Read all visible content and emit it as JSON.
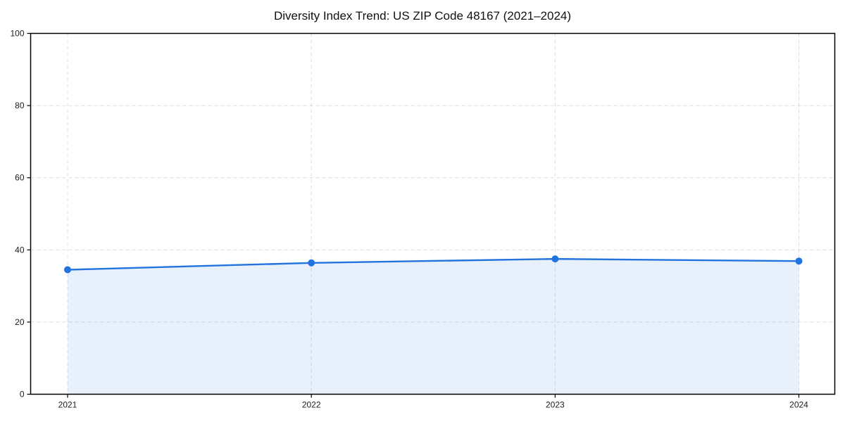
{
  "chart_data": {
    "type": "area",
    "title": "Diversity Index Trend: US ZIP Code 48167 (2021–2024)",
    "x": [
      "2021",
      "2022",
      "2023",
      "2024"
    ],
    "series": [
      {
        "name": "Diversity Index",
        "values": [
          34.5,
          36.4,
          37.5,
          36.9
        ]
      }
    ],
    "xlabel": "",
    "ylabel": "",
    "ylim": [
      0,
      100
    ],
    "yticks": [
      0,
      20,
      40,
      60,
      80,
      100
    ],
    "grid": true,
    "grid_style": "dashed",
    "legend": false,
    "colors": {
      "line": "#2273de",
      "marker": "#2273de",
      "fill": "rgba(34,115,222,0.11)",
      "grid": "#dcdcdc",
      "spine": "#000000",
      "text": "#1a1a1a"
    }
  }
}
